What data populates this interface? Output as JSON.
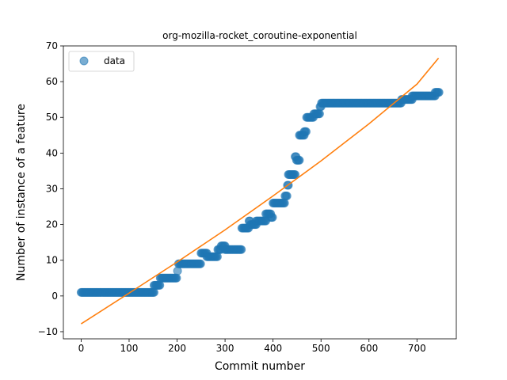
{
  "chart_data": {
    "type": "scatter",
    "title": "org-mozilla-rocket_coroutine-exponential",
    "xlabel": "Commit number",
    "ylabel": "Number of instance of a feature",
    "xlim": [
      -37,
      782
    ],
    "ylim": [
      -12,
      70
    ],
    "xticks": [
      0,
      100,
      200,
      300,
      400,
      500,
      600,
      700
    ],
    "yticks": [
      -10,
      0,
      10,
      20,
      30,
      40,
      50,
      60,
      70
    ],
    "grid": false,
    "legend": {
      "placement": "top-left",
      "entries": [
        "data"
      ]
    },
    "colors": {
      "data": "#1f77b4",
      "fit": "#ff7f0e"
    },
    "series": [
      {
        "name": "data",
        "kind": "scatter",
        "steps": [
          [
            0,
            152,
            1
          ],
          [
            152,
            165,
            3
          ],
          [
            165,
            200,
            5
          ],
          [
            201,
            201,
            7
          ],
          [
            203,
            250,
            9
          ],
          [
            250,
            262,
            12
          ],
          [
            262,
            285,
            11
          ],
          [
            285,
            292,
            13
          ],
          [
            292,
            300,
            14
          ],
          [
            300,
            335,
            13
          ],
          [
            335,
            350,
            19
          ],
          [
            350,
            353,
            21
          ],
          [
            353,
            365,
            20
          ],
          [
            365,
            385,
            21
          ],
          [
            385,
            395,
            23
          ],
          [
            395,
            400,
            22
          ],
          [
            400,
            425,
            26
          ],
          [
            425,
            430,
            28
          ],
          [
            430,
            432,
            31
          ],
          [
            432,
            446,
            34
          ],
          [
            446,
            449,
            39
          ],
          [
            449,
            455,
            38
          ],
          [
            455,
            465,
            45
          ],
          [
            465,
            470,
            46
          ],
          [
            470,
            485,
            50
          ],
          [
            485,
            498,
            51
          ],
          [
            498,
            501,
            53
          ],
          [
            501,
            668,
            54
          ],
          [
            668,
            690,
            55
          ],
          [
            690,
            738,
            56
          ],
          [
            738,
            746,
            57
          ]
        ]
      },
      {
        "name": "fit",
        "kind": "line",
        "x": [
          0,
          100,
          200,
          300,
          400,
          500,
          600,
          700,
          745
        ],
        "y": [
          -7.8,
          0.8,
          9.5,
          18.5,
          28.0,
          37.8,
          48.2,
          59.3,
          66.6
        ]
      }
    ]
  }
}
